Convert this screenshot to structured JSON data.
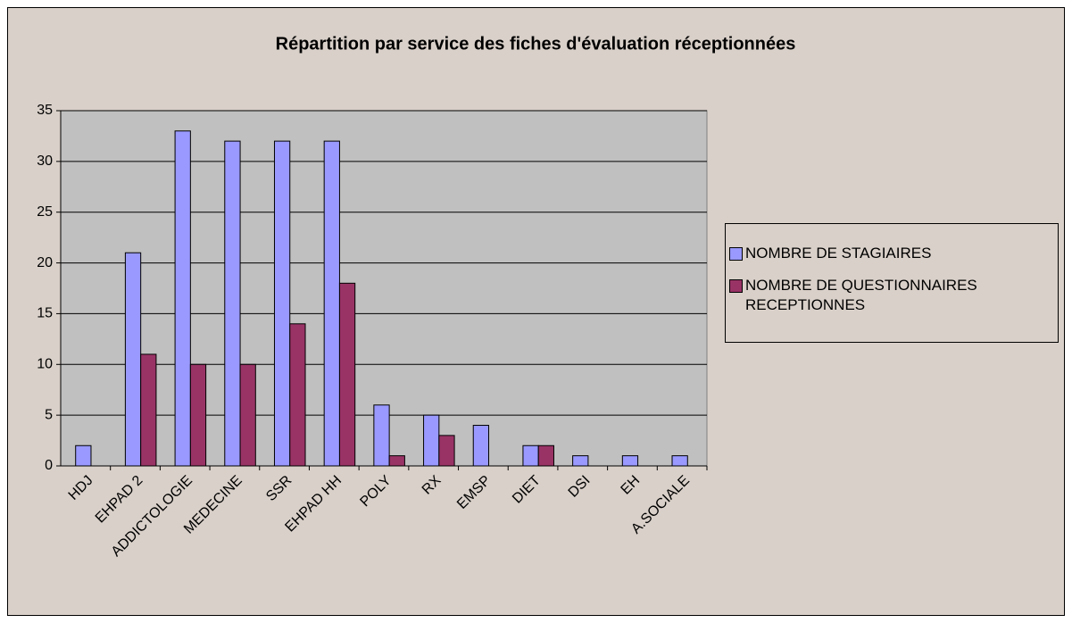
{
  "chart_data": {
    "type": "bar",
    "title": "Répartition par service des fiches d'évaluation réceptionnées",
    "categories": [
      "HDJ",
      "EHPAD 2",
      "ADDICTOLOGIE",
      "MEDECINE",
      "SSR",
      "EHPAD HH",
      "POLY",
      "RX",
      "EMSP",
      "DIET",
      "DSI",
      "EH",
      "A.SOCIALE"
    ],
    "series": [
      {
        "name": "NOMBRE DE STAGIAIRES",
        "color": "#9999ff",
        "values": [
          2,
          21,
          33,
          32,
          32,
          32,
          6,
          5,
          4,
          2,
          1,
          1,
          1
        ]
      },
      {
        "name": "NOMBRE DE QUESTIONNAIRES RECEPTIONNES",
        "color": "#993366",
        "values": [
          0,
          11,
          10,
          10,
          14,
          18,
          1,
          3,
          0,
          2,
          0,
          0,
          0
        ]
      }
    ],
    "ylim": [
      0,
      35
    ],
    "yticks": [
      0,
      5,
      10,
      15,
      20,
      25,
      30,
      35
    ],
    "grid": true,
    "legend": "right"
  }
}
